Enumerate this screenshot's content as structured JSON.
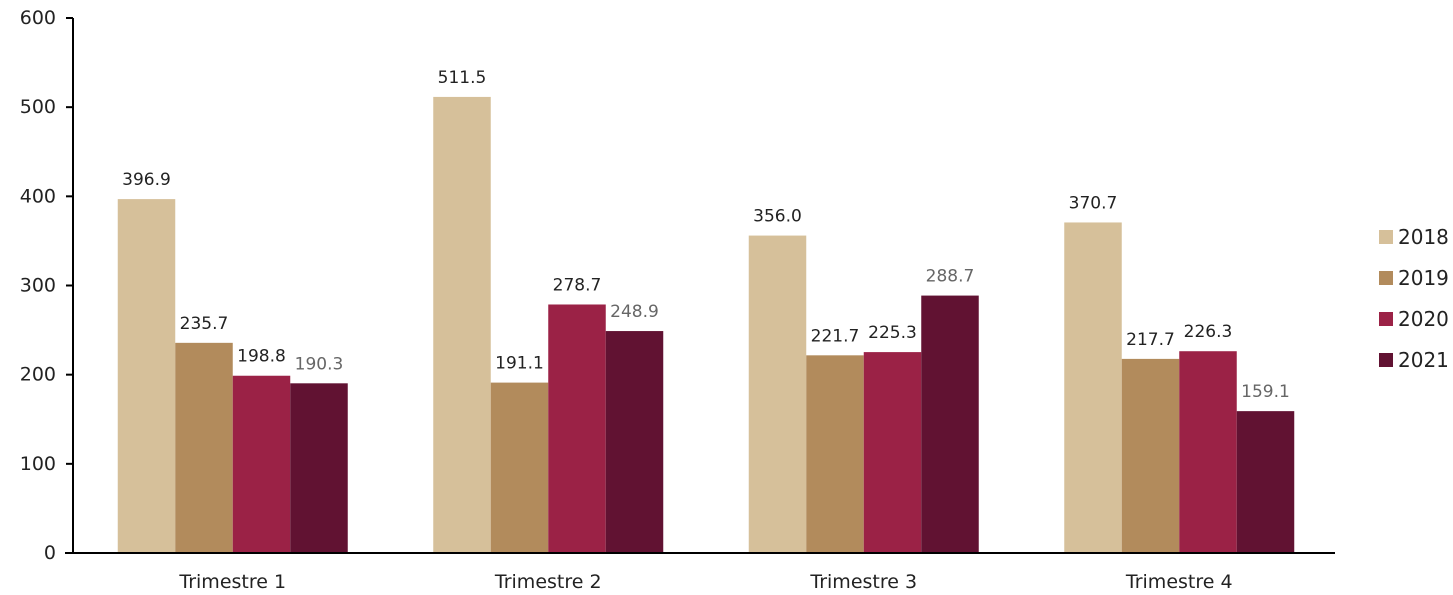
{
  "chart_data": {
    "type": "bar",
    "title": "",
    "xlabel": "",
    "ylabel": "",
    "ylim": [
      0,
      600
    ],
    "yticks": [
      0,
      100,
      200,
      300,
      400,
      500,
      600
    ],
    "grid": false,
    "legend_position": "right",
    "categories": [
      "Trimestre 1",
      "Trimestre 2",
      "Trimestre 3",
      "Trimestre 4"
    ],
    "series": [
      {
        "name": "2018",
        "color": "#d6c09a",
        "values": [
          396.9,
          511.5,
          356.0,
          370.7
        ],
        "labels": [
          "396.9",
          "511.5",
          "356.0",
          "370.7"
        ]
      },
      {
        "name": "2019",
        "color": "#b28b5c",
        "values": [
          235.7,
          191.1,
          221.7,
          217.7
        ],
        "labels": [
          "235.7",
          "191.1",
          "221.7",
          "217.7"
        ]
      },
      {
        "name": "2020",
        "color": "#9b2246",
        "values": [
          198.8,
          278.7,
          225.3,
          226.3
        ],
        "labels": [
          "198.8",
          "278.7",
          "225.3",
          "226.3"
        ]
      },
      {
        "name": "2021",
        "color": "#611232",
        "values": [
          190.3,
          248.9,
          288.7,
          159.1
        ],
        "labels": [
          "190.3",
          "248.9",
          "288.7",
          "159.1"
        ]
      }
    ]
  }
}
